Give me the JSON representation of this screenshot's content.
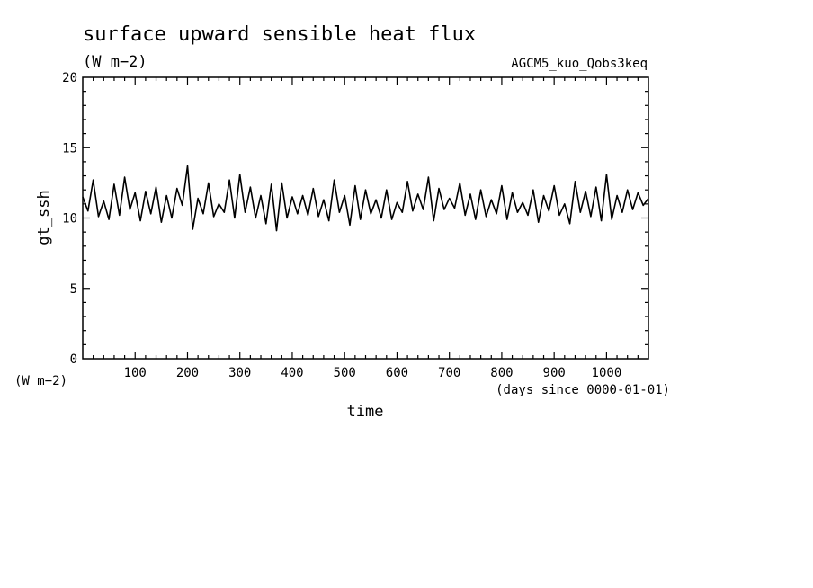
{
  "chart_data": {
    "type": "line",
    "title": "surface upward sensible heat flux",
    "title_units": "(W m−2)",
    "run_name": "AGCM5_kuo_Qobs3keq",
    "ylabel": "gt_ssh",
    "y_unit_label": "(W m−2)",
    "xlabel": "time",
    "x_unit_label": "(days since 0000-01-01)",
    "xlim": [
      0,
      1080
    ],
    "ylim": [
      0,
      20
    ],
    "x_ticks": [
      100,
      200,
      300,
      400,
      500,
      600,
      700,
      800,
      900,
      1000
    ],
    "y_ticks": [
      0,
      5,
      10,
      15,
      20
    ],
    "grid": false,
    "series": [
      {
        "x": [
          0,
          10,
          20,
          30,
          40,
          50,
          60,
          70,
          80,
          90,
          100,
          110,
          120,
          130,
          140,
          150,
          160,
          170,
          180,
          190,
          200,
          210,
          220,
          230,
          240,
          250,
          260,
          270,
          280,
          290,
          300,
          310,
          320,
          330,
          340,
          350,
          360,
          370,
          380,
          390,
          400,
          410,
          420,
          430,
          440,
          450,
          460,
          470,
          480,
          490,
          500,
          510,
          520,
          530,
          540,
          550,
          560,
          570,
          580,
          590,
          600,
          610,
          620,
          630,
          640,
          650,
          660,
          670,
          680,
          690,
          700,
          710,
          720,
          730,
          740,
          750,
          760,
          770,
          780,
          790,
          800,
          810,
          820,
          830,
          840,
          850,
          860,
          870,
          880,
          890,
          900,
          910,
          920,
          930,
          940,
          950,
          960,
          970,
          980,
          990,
          1000,
          1010,
          1020,
          1030,
          1040,
          1050,
          1060,
          1070,
          1080
        ],
        "values": [
          11.5,
          10.5,
          12.7,
          10.1,
          11.2,
          9.9,
          12.4,
          10.2,
          12.9,
          10.6,
          11.8,
          9.8,
          11.9,
          10.3,
          12.2,
          9.7,
          11.6,
          10.0,
          12.1,
          10.9,
          13.7,
          9.2,
          11.4,
          10.3,
          12.5,
          10.1,
          11.0,
          10.4,
          12.7,
          10.0,
          13.1,
          10.4,
          12.2,
          10.0,
          11.6,
          9.6,
          12.4,
          9.1,
          12.5,
          10.0,
          11.5,
          10.3,
          11.6,
          10.2,
          12.1,
          10.1,
          11.3,
          9.8,
          12.7,
          10.4,
          11.6,
          9.5,
          12.3,
          9.9,
          12.0,
          10.3,
          11.3,
          10.0,
          12.0,
          9.9,
          11.1,
          10.4,
          12.6,
          10.5,
          11.7,
          10.6,
          12.9,
          9.8,
          12.1,
          10.6,
          11.4,
          10.7,
          12.5,
          10.2,
          11.7,
          9.9,
          12.0,
          10.1,
          11.3,
          10.3,
          12.3,
          9.9,
          11.8,
          10.4,
          11.1,
          10.2,
          12.0,
          9.7,
          11.6,
          10.5,
          12.3,
          10.2,
          11.0,
          9.6,
          12.6,
          10.4,
          11.9,
          10.1,
          12.2,
          9.8,
          13.1,
          9.9,
          11.6,
          10.4,
          12.0,
          10.6,
          11.8,
          10.9,
          11.4
        ]
      }
    ]
  }
}
